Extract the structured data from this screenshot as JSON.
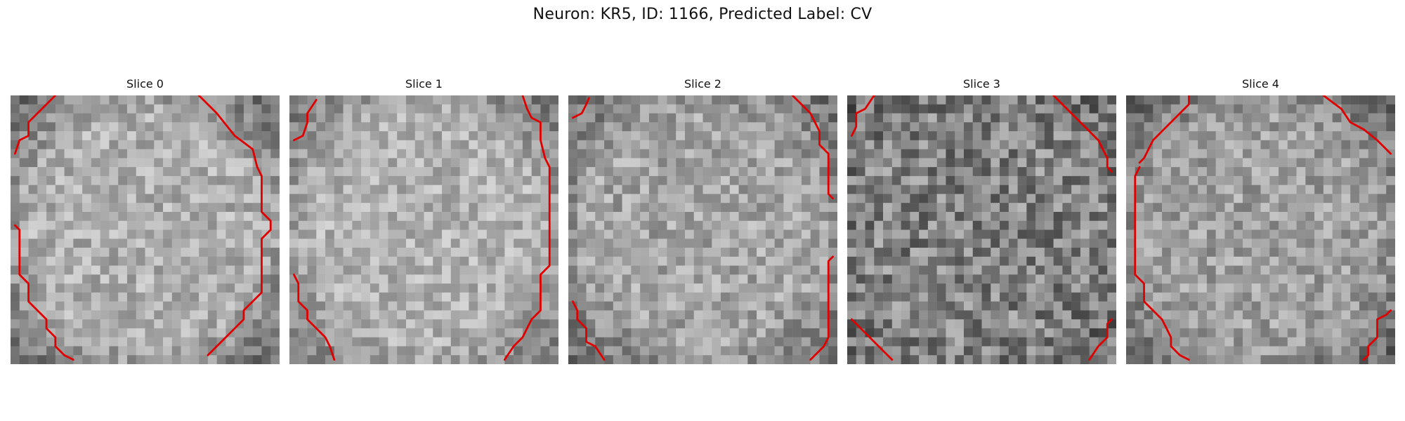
{
  "figure": {
    "title": "Neuron: KR5, ID: 1166, Predicted Label: CV"
  },
  "panels": [
    {
      "title": "Slice 0"
    },
    {
      "title": "Slice 1"
    },
    {
      "title": "Slice 2"
    },
    {
      "title": "Slice 3"
    },
    {
      "title": "Slice 4"
    }
  ],
  "contour_color": "#e00000"
}
